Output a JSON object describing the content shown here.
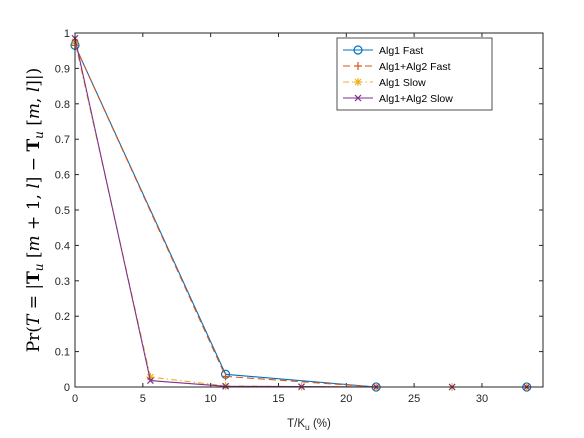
{
  "chart_data": {
    "type": "line",
    "title": "",
    "xlabel": "T/K_u (%)",
    "xlabel_main": "T/K",
    "xlabel_sub": "u",
    "xlabel_tail": " (%)",
    "ylabel": "Pr(T = |T_u[m+1,l] − T_u[m,l]|)",
    "xlim": [
      0,
      34.5
    ],
    "ylim": [
      0,
      1
    ],
    "xticks": [
      "0",
      "5",
      "10",
      "15",
      "20",
      "25",
      "30"
    ],
    "yticks": [
      "0",
      "0.1",
      "0.2",
      "0.3",
      "0.4",
      "0.5",
      "0.6",
      "0.7",
      "0.8",
      "0.9",
      "1"
    ],
    "legend_position": "top-right",
    "series": [
      {
        "name": "Alg1 Fast",
        "color": "#0072BD",
        "dash": "solid",
        "marker": "circle",
        "x": [
          0,
          11.1,
          22.2,
          33.3
        ],
        "y": [
          0.965,
          0.036,
          0.0,
          0.0
        ]
      },
      {
        "name": "Alg1+Alg2 Fast",
        "color": "#D95319",
        "dash": "dashed",
        "marker": "plus",
        "x": [
          0,
          11.1,
          22.2,
          33.3
        ],
        "y": [
          0.965,
          0.03,
          0.0,
          0.0
        ]
      },
      {
        "name": "Alg1 Slow",
        "color": "#EDB120",
        "dash": "dashdot",
        "marker": "asterisk",
        "x": [
          0,
          5.56,
          11.1,
          16.7,
          22.2,
          27.8,
          33.3
        ],
        "y": [
          0.975,
          0.028,
          0.003,
          0.001,
          0.0,
          0.0,
          0.0
        ]
      },
      {
        "name": "Alg1+Alg2 Slow",
        "color": "#7E2F8E",
        "dash": "solid",
        "marker": "x",
        "x": [
          0,
          5.56,
          11.1,
          16.7,
          22.2,
          27.8,
          33.3
        ],
        "y": [
          0.985,
          0.018,
          0.002,
          0.001,
          0.0,
          0.0,
          0.0
        ]
      }
    ]
  }
}
